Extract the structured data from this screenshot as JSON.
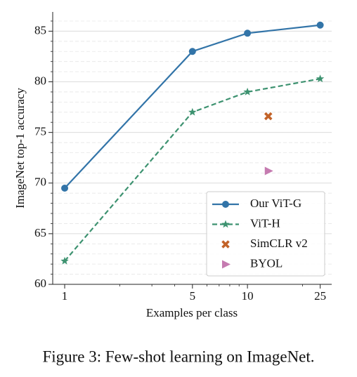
{
  "chart_data": {
    "type": "line",
    "ylabel": "ImageNet top-1 accuracy",
    "xlabel": "Examples per class",
    "x": [
      1,
      5,
      10,
      25
    ],
    "xlog": true,
    "xlim": [
      0.86,
      28.9
    ],
    "xticks": [
      1,
      5,
      10,
      25
    ],
    "xminorticks": [
      2,
      3,
      4,
      6,
      7,
      8,
      9,
      20
    ],
    "ylim": [
      60,
      86.9
    ],
    "yticks": [
      60,
      65,
      70,
      75,
      80,
      85
    ],
    "yminorticks": [
      61,
      62,
      63,
      64,
      66,
      67,
      68,
      69,
      71,
      72,
      73,
      74,
      76,
      77,
      78,
      79,
      81,
      82,
      83,
      84,
      86
    ],
    "grid": true,
    "legend": "lower right",
    "series": [
      {
        "name": "Our ViT-G",
        "color": "#3274a8",
        "marker": "circle",
        "linestyle": "solid",
        "values": [
          69.5,
          83,
          84.8,
          85.6
        ]
      },
      {
        "name": "ViT-H",
        "color": "#3d9270",
        "marker": "star",
        "linestyle": "dashed",
        "values": [
          62.3,
          77,
          79,
          80.3
        ]
      },
      {
        "name": "SimCLR v2",
        "color": "#c26228",
        "marker": "x",
        "linestyle": "none",
        "x": [
          13
        ],
        "values": [
          76.6
        ]
      },
      {
        "name": "BYOL",
        "color": "#c57bb0",
        "marker": "triangle",
        "linestyle": "none",
        "x": [
          13
        ],
        "values": [
          71.2
        ]
      }
    ]
  },
  "caption": "Figure 3: Few-shot learning on ImageNet."
}
